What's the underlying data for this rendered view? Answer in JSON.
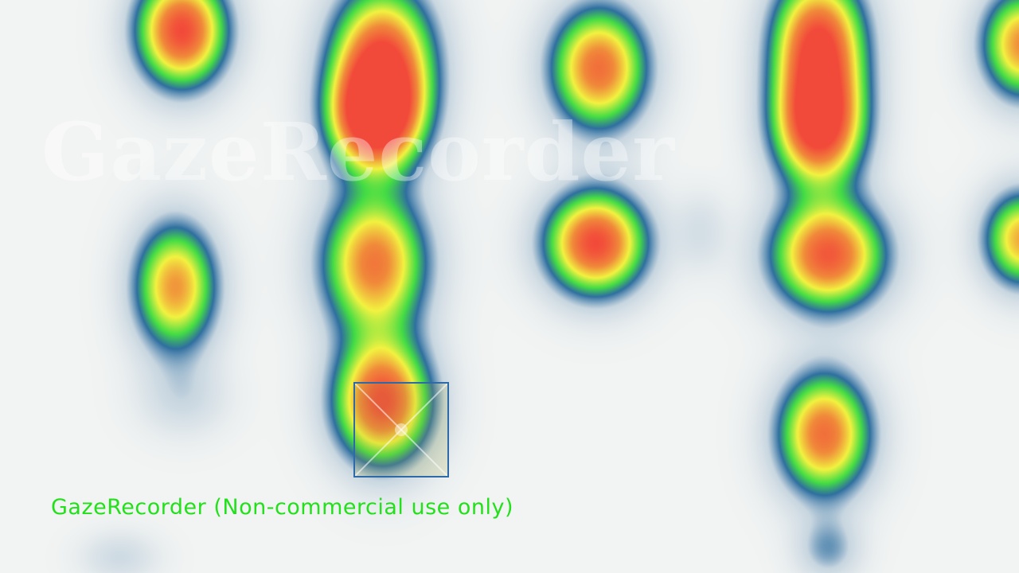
{
  "watermark": {
    "text": "GazeRecorder"
  },
  "caption": {
    "text": "GazeRecorder (Non-commercial use only)"
  },
  "colors": {
    "background": "#f2f4f3",
    "caption": "#22e01a",
    "target_border": "#2f6aa8",
    "heat_stops": [
      "#2f6fa0",
      "#44dd44",
      "#f2f240",
      "#f08a3a",
      "#f24a3a"
    ]
  },
  "icons": {
    "target": "calibration-target-icon"
  }
}
